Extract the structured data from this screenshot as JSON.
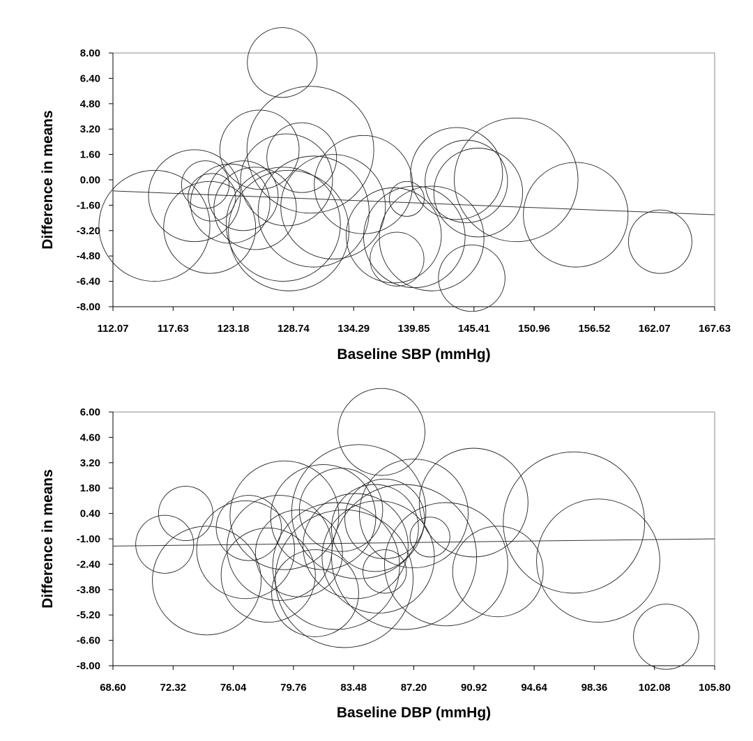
{
  "chart_data": [
    {
      "type": "scatter",
      "marker": "bubble",
      "xlabel": "Baseline SBP (mmHg)",
      "ylabel": "Difference in means",
      "xlim": [
        112.07,
        167.63
      ],
      "ylim": [
        -8.0,
        8.0
      ],
      "xticks": [
        "112.07",
        "117.63",
        "123.18",
        "128.74",
        "134.29",
        "139.85",
        "145.41",
        "150.96",
        "156.52",
        "162.07",
        "167.63"
      ],
      "yticks": [
        "8.00",
        "6.40",
        "4.80",
        "3.20",
        "1.60",
        "0.00",
        "-1.60",
        "-3.20",
        "-4.80",
        "-6.40",
        "-8.00"
      ],
      "trendline": {
        "x": [
          112.07,
          167.63
        ],
        "y": [
          -0.7,
          -2.2
        ]
      },
      "points": [
        {
          "x": 127.7,
          "y": 7.4,
          "r": 2.2
        },
        {
          "x": 130.3,
          "y": 1.9,
          "r": 4.0
        },
        {
          "x": 125.6,
          "y": 1.9,
          "r": 2.5
        },
        {
          "x": 129.5,
          "y": 1.4,
          "r": 2.2
        },
        {
          "x": 128.1,
          "y": 0.0,
          "r": 2.9
        },
        {
          "x": 120.6,
          "y": -0.3,
          "r": 1.5
        },
        {
          "x": 119.6,
          "y": -1.0,
          "r": 2.9
        },
        {
          "x": 121.2,
          "y": -1.1,
          "r": 1.5
        },
        {
          "x": 122.9,
          "y": -1.5,
          "r": 2.5
        },
        {
          "x": 124.1,
          "y": -1.0,
          "r": 2.2
        },
        {
          "x": 125.2,
          "y": -1.8,
          "r": 2.6
        },
        {
          "x": 121.0,
          "y": -3.0,
          "r": 2.9
        },
        {
          "x": 115.9,
          "y": -2.9,
          "r": 3.5
        },
        {
          "x": 127.8,
          "y": -2.8,
          "r": 3.6
        },
        {
          "x": 128.3,
          "y": -3.2,
          "r": 3.8
        },
        {
          "x": 130.6,
          "y": -2.0,
          "r": 3.5
        },
        {
          "x": 132.4,
          "y": -1.7,
          "r": 3.3
        },
        {
          "x": 135.2,
          "y": -0.3,
          "r": 3.1
        },
        {
          "x": 138.0,
          "y": -3.5,
          "r": 3.0
        },
        {
          "x": 139.2,
          "y": -1.2,
          "r": 1.1
        },
        {
          "x": 139.9,
          "y": -3.6,
          "r": 3.2
        },
        {
          "x": 138.3,
          "y": -5.0,
          "r": 1.7
        },
        {
          "x": 141.5,
          "y": -3.7,
          "r": 3.3
        },
        {
          "x": 143.8,
          "y": 0.4,
          "r": 2.9
        },
        {
          "x": 144.7,
          "y": -0.1,
          "r": 2.6
        },
        {
          "x": 145.8,
          "y": -0.8,
          "r": 2.8
        },
        {
          "x": 149.3,
          "y": 0.0,
          "r": 3.9
        },
        {
          "x": 145.2,
          "y": -6.2,
          "r": 2.1
        },
        {
          "x": 154.8,
          "y": -2.2,
          "r": 3.3
        },
        {
          "x": 162.6,
          "y": -3.9,
          "r": 2.0
        }
      ]
    },
    {
      "type": "scatter",
      "marker": "bubble",
      "xlabel": "Baseline DBP (mmHg)",
      "ylabel": "Difference in means",
      "xlim": [
        68.6,
        105.8
      ],
      "ylim": [
        -8.0,
        6.0
      ],
      "xticks": [
        "68.60",
        "72.32",
        "76.04",
        "79.76",
        "83.48",
        "87.20",
        "90.92",
        "94.64",
        "98.36",
        "102.08",
        "105.80"
      ],
      "yticks": [
        "6.00",
        "4.60",
        "3.20",
        "1.80",
        "0.40",
        "-1.00",
        "-2.40",
        "-3.80",
        "-5.20",
        "-6.60",
        "-8.00"
      ],
      "trendline": {
        "x": [
          68.6,
          105.8
        ],
        "y": [
          -1.4,
          -1.0
        ]
      },
      "points": [
        {
          "x": 71.8,
          "y": -1.3,
          "r": 1.6
        },
        {
          "x": 73.1,
          "y": 0.4,
          "r": 1.5
        },
        {
          "x": 74.4,
          "y": -3.3,
          "r": 3.0
        },
        {
          "x": 77.0,
          "y": -0.4,
          "r": 1.8
        },
        {
          "x": 76.8,
          "y": -1.6,
          "r": 2.7
        },
        {
          "x": 78.2,
          "y": -3.0,
          "r": 2.6
        },
        {
          "x": 78.9,
          "y": -1.5,
          "r": 2.9
        },
        {
          "x": 79.2,
          "y": 0.3,
          "r": 3.0
        },
        {
          "x": 80.1,
          "y": -1.8,
          "r": 2.4
        },
        {
          "x": 81.1,
          "y": -4.0,
          "r": 2.4
        },
        {
          "x": 81.6,
          "y": 0.2,
          "r": 2.9
        },
        {
          "x": 82.7,
          "y": 0.6,
          "r": 2.3
        },
        {
          "x": 82.4,
          "y": -2.5,
          "r": 3.5
        },
        {
          "x": 82.9,
          "y": -3.2,
          "r": 3.8
        },
        {
          "x": 83.8,
          "y": 0.5,
          "r": 3.7
        },
        {
          "x": 83.6,
          "y": -1.4,
          "r": 2.9
        },
        {
          "x": 84.8,
          "y": -0.4,
          "r": 2.4
        },
        {
          "x": 85.4,
          "y": 0.1,
          "r": 2.2
        },
        {
          "x": 85.0,
          "y": -2.0,
          "r": 3.1
        },
        {
          "x": 85.4,
          "y": -2.8,
          "r": 1.2
        },
        {
          "x": 86.6,
          "y": -2.0,
          "r": 4.0
        },
        {
          "x": 87.2,
          "y": 0.4,
          "r": 3.0
        },
        {
          "x": 88.2,
          "y": -0.9,
          "r": 1.1
        },
        {
          "x": 89.2,
          "y": -2.4,
          "r": 3.4
        },
        {
          "x": 90.9,
          "y": 1.0,
          "r": 3.0
        },
        {
          "x": 92.4,
          "y": -2.8,
          "r": 2.5
        },
        {
          "x": 97.1,
          "y": -0.1,
          "r": 3.9
        },
        {
          "x": 98.6,
          "y": -2.2,
          "r": 3.4
        },
        {
          "x": 85.2,
          "y": 4.9,
          "r": 2.4
        },
        {
          "x": 102.8,
          "y": -6.4,
          "r": 1.8
        }
      ]
    }
  ]
}
